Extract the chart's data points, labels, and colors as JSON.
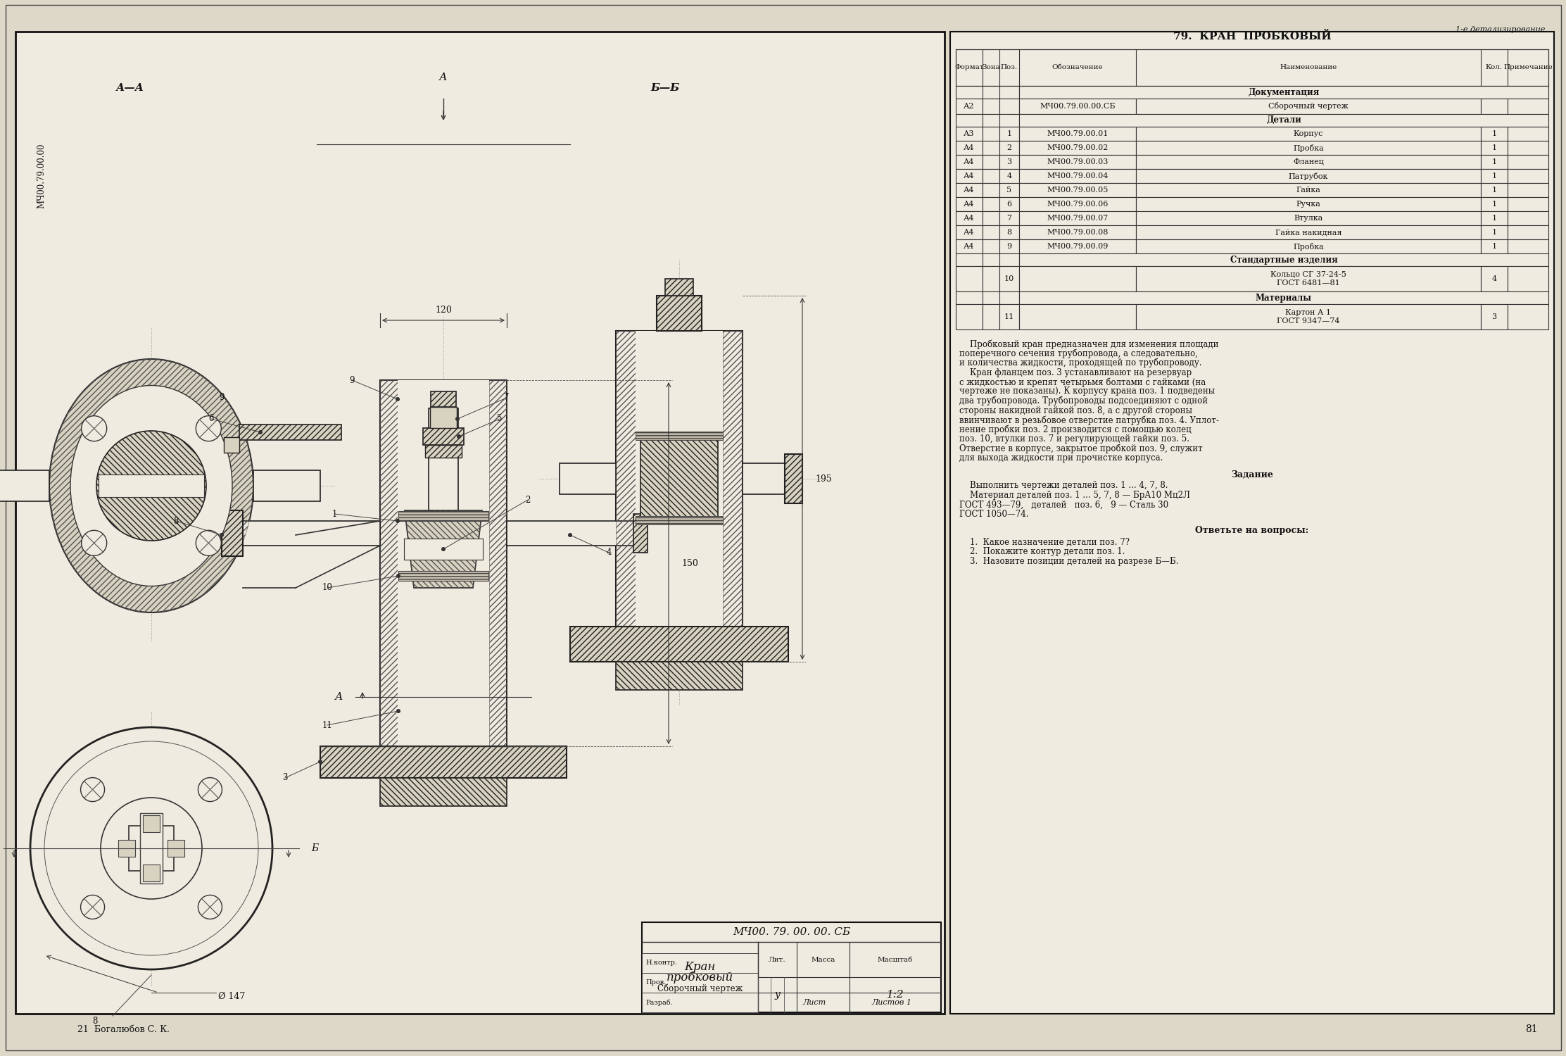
{
  "page_title": "1-е детализирование",
  "section_title": "79.  КРАН  ПРОБКОВЫЙ",
  "bg_color": "#ddd8c8",
  "draw_area_color": "#f0ebe0",
  "border_color": "#111111",
  "page_number_left": "21  Богалюбов С. К.",
  "page_number_right": "81",
  "title_block": {
    "designation": "МЧ00. 79. 00. 00. СБ",
    "name_line1": "Кран",
    "name_line2": "пробковый",
    "name_line3": "Сборочный чертеж",
    "scale": "1:2",
    "lit": "у",
    "sheet": "Лист",
    "sheets": "Листов 1",
    "col_headers": [
      "Лит.",
      "Масса",
      "Масштаб"
    ]
  },
  "spec_title": "79.  КРАН  ПРОБКОВЫЙ",
  "spec_italic_top": "1-е детализирование",
  "spec_headers": [
    "Формат",
    "Зона",
    "Поз.",
    "Обозначение",
    "Наименование",
    "Кол.",
    "Примечание"
  ],
  "spec_section_doc": "Документация",
  "spec_rows_doc": [
    [
      "А2",
      "",
      "",
      "МЧ00.79.00.00.СБ",
      "Сборочный чертеж",
      "",
      ""
    ]
  ],
  "spec_section_details": "Детали",
  "spec_rows_details": [
    [
      "А3",
      "",
      "1",
      "МЧ00.79.00.01",
      "Корпус",
      "1",
      ""
    ],
    [
      "А4",
      "",
      "2",
      "МЧ00.79.00.02",
      "Пробка",
      "1",
      ""
    ],
    [
      "А4",
      "",
      "3",
      "МЧ00.79.00.03",
      "Фланец",
      "1",
      ""
    ],
    [
      "А4",
      "",
      "4",
      "МЧ00.79.00.04",
      "Патрубок",
      "1",
      ""
    ],
    [
      "А4",
      "",
      "5",
      "МЧ00.79.00.05",
      "Гайка",
      "1",
      ""
    ],
    [
      "А4",
      "",
      "6",
      "МЧ00.79.00.06",
      "Ручка",
      "1",
      ""
    ],
    [
      "А4",
      "",
      "7",
      "МЧ00.79.00.07",
      "Втулка",
      "1",
      ""
    ],
    [
      "А4",
      "",
      "8",
      "МЧ00.79.00.08",
      "Гайка накидная",
      "1",
      ""
    ],
    [
      "А4",
      "",
      "9",
      "МЧ00.79.00.09",
      "Пробка",
      "1",
      ""
    ]
  ],
  "spec_section_standard": "Стандартные изделия",
  "spec_rows_standard": [
    [
      "",
      "",
      "10",
      "",
      "Кольцо СГ 37-24-5\nГОСТ 6481—81",
      "4",
      ""
    ]
  ],
  "spec_section_materials": "Материалы",
  "spec_rows_materials": [
    [
      "",
      "",
      "11",
      "",
      "Картон А 1\nГОСТ 9347—74",
      "3",
      ""
    ]
  ],
  "description_lines": [
    "    Пробковый кран предназначен для изменения площади",
    "поперечного сечения трубопровода, а следовательно,",
    "и количества жидкости, проходящей по трубопроводу.",
    "    Кран фланцем поз. 3 устанавливают на резервуар",
    "с жидкостью и крепят четырьмя болтами с гайками (на",
    "чертеже не показаны). К корпусу крана поз. 1 подведены",
    "два трубопровода. Трубопроводы подсоединяют с одной",
    "стороны накидной гайкой поз. 8, а с другой стороны",
    "ввинчивают в резьбовое отверстие патрубка поз. 4. Уплот-",
    "нение пробки поз. 2 производится с помощью колец",
    "поз. 10, втулки поз. 7 и регулирующей гайки поз. 5.",
    "Отверстие в корпусе, закрытое пробкой поз. 9, служит",
    "для выхода жидкости при прочистке корпуса."
  ],
  "task_title": "Задание",
  "task_lines": [
    "    Выполнить чертежи деталей поз. 1 ... 4, 7, 8.",
    "    Материал деталей поз. 1 ... 5, 7, 8 — БрА10 Мц2Л",
    "ГОСТ 493—79,   деталей   поз. 6,   9 — Сталь 30",
    "ГОСТ 1050—74."
  ],
  "questions_title": "Ответьте на вопросы:",
  "questions": [
    "1.  Какое назначение детали поз. 7?",
    "2.  Покажите контур детали поз. 1.",
    "3.  Назовите позиции деталей на разрезе Б—Б."
  ],
  "dim_120": "120",
  "dim_150": "150",
  "dim_195": "195",
  "dim_phi147": "Ø 147",
  "label_top_left": "МЧ00.79.00.00",
  "view_AA": "А—А",
  "view_BB": "Б—Б",
  "cut_A": "А",
  "cut_B": "Б"
}
